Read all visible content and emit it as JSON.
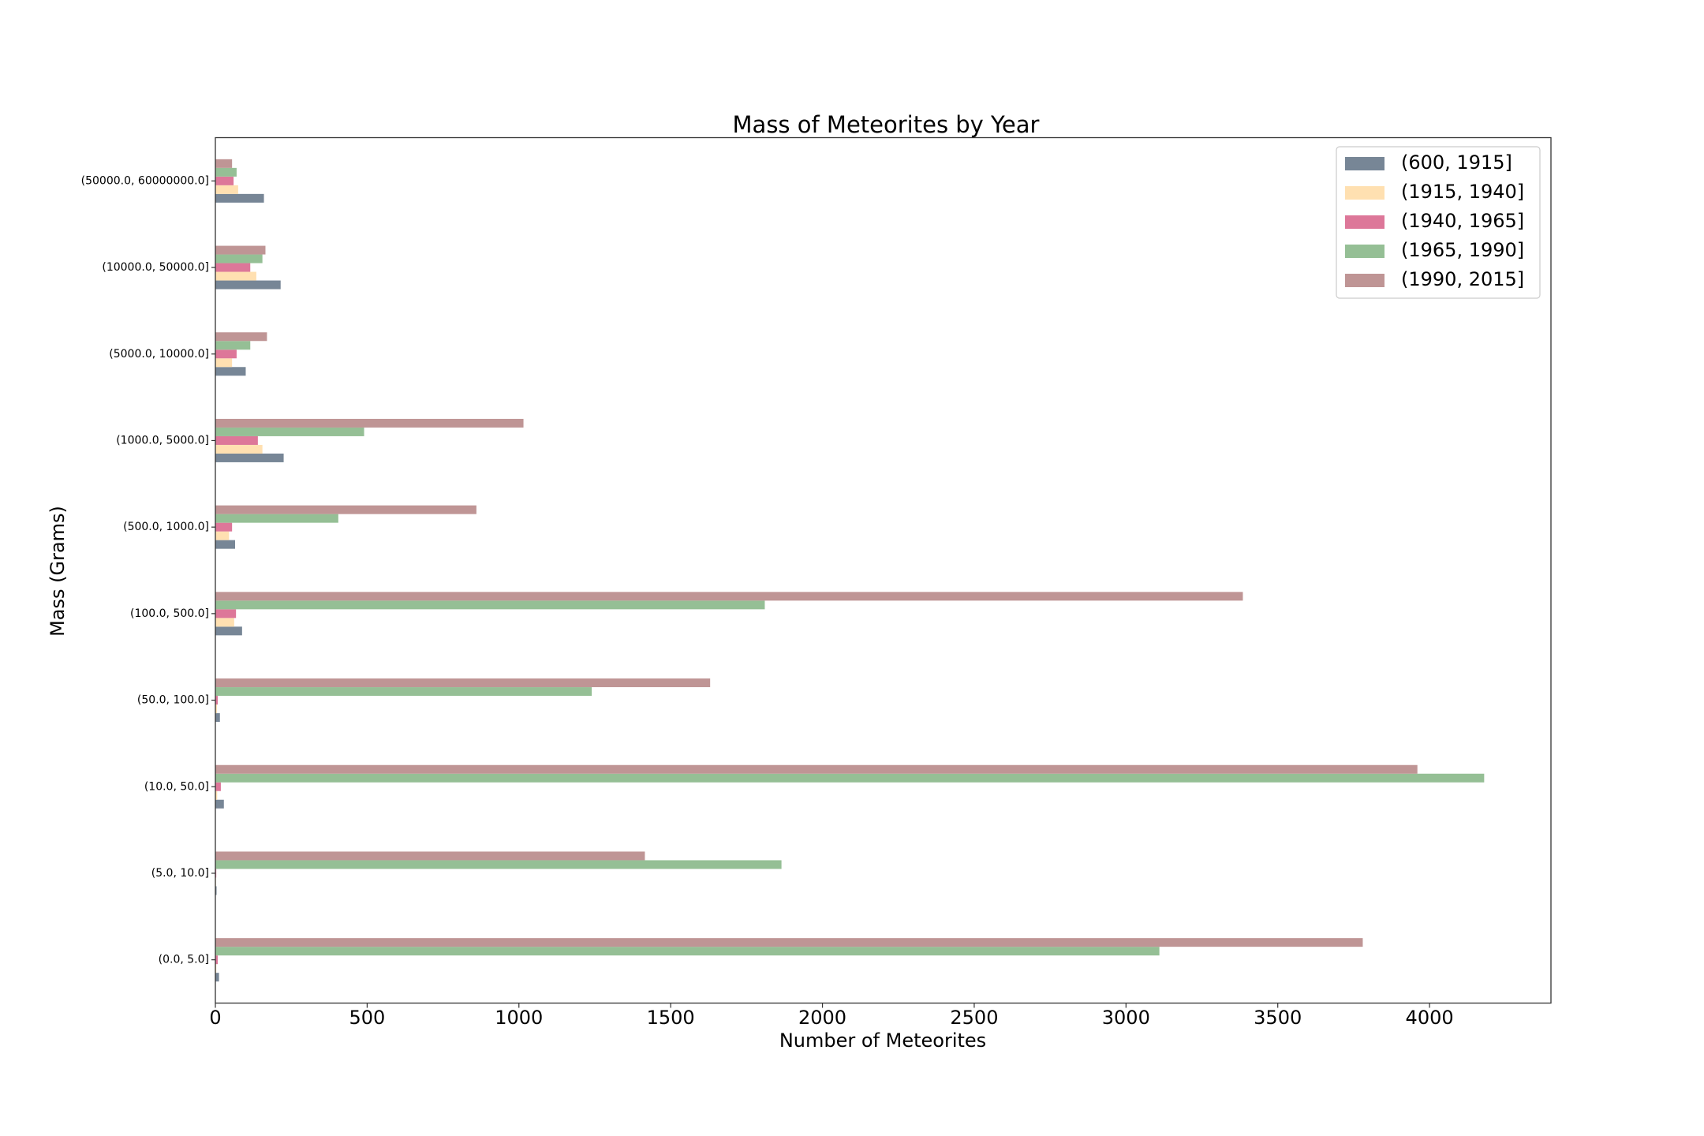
{
  "chart_data": {
    "type": "bar",
    "orientation": "horizontal",
    "title": "Mass of Meteorites by Year",
    "xlabel": "Number of Meteorites",
    "ylabel": "Mass (Grams)",
    "xlim": [
      0,
      4400
    ],
    "xticks": [
      0,
      500,
      1000,
      1500,
      2000,
      2500,
      3000,
      3500,
      4000
    ],
    "grid": false,
    "legend_position": "top-right",
    "categories": [
      "(0.0, 5.0]",
      "(5.0, 10.0]",
      "(10.0, 50.0]",
      "(50.0, 100.0]",
      "(100.0, 500.0]",
      "(500.0, 1000.0]",
      "(1000.0, 5000.0]",
      "(5000.0, 10000.0]",
      "(10000.0, 50000.0]",
      "(50000.0, 60000000.0]"
    ],
    "series": [
      {
        "name": "(600, 1915]",
        "color": "#708090",
        "values": [
          12,
          4,
          28,
          15,
          88,
          65,
          225,
          100,
          215,
          160
        ]
      },
      {
        "name": "(1915, 1940]",
        "color": "#FFDEAD",
        "values": [
          3,
          2,
          6,
          5,
          62,
          45,
          155,
          55,
          135,
          75
        ]
      },
      {
        "name": "(1940, 1965]",
        "color": "#DB7093",
        "values": [
          8,
          3,
          18,
          8,
          68,
          55,
          140,
          70,
          115,
          60
        ]
      },
      {
        "name": "(1965, 1990]",
        "color": "#8FBC8F",
        "values": [
          3110,
          1865,
          4180,
          1240,
          1810,
          405,
          490,
          115,
          155,
          70
        ]
      },
      {
        "name": "(1990, 2015]",
        "color": "#BC8F8F",
        "values": [
          3780,
          1415,
          3960,
          1630,
          3385,
          860,
          1015,
          170,
          165,
          55
        ]
      }
    ]
  }
}
